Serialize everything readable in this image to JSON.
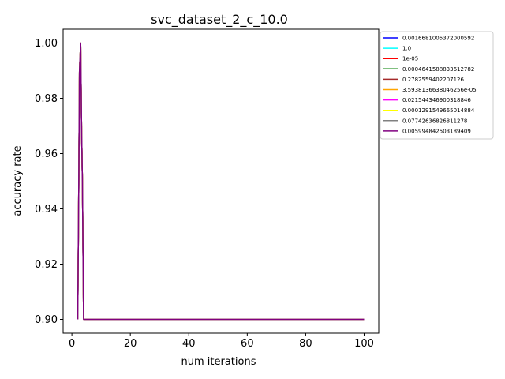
{
  "chart_data": {
    "type": "line",
    "title": "svc_dataset_2_c_10.0",
    "xlabel": "num iterations",
    "ylabel": "accuracy rate",
    "xlim": [
      -3,
      105
    ],
    "ylim": [
      0.895,
      1.005
    ],
    "xticks": [
      0,
      20,
      40,
      60,
      80,
      100
    ],
    "yticks": [
      0.9,
      0.92,
      0.94,
      0.96,
      0.98,
      1.0
    ],
    "ytick_labels": [
      "0.90",
      "0.92",
      "0.94",
      "0.96",
      "0.98",
      "1.00"
    ],
    "grid": false,
    "legend_position": "outside-upper-right",
    "x": [
      2,
      2.3,
      2.6,
      3,
      3.3,
      3.6,
      4,
      5,
      10,
      20,
      40,
      60,
      80,
      100
    ],
    "series": [
      {
        "name": "0.0016681005372000592",
        "color": "#0000ff",
        "values": [
          0.9,
          0.94,
          0.99,
          1.0,
          0.97,
          0.95,
          0.9,
          0.9,
          0.9,
          0.9,
          0.9,
          0.9,
          0.9,
          0.9
        ]
      },
      {
        "name": "1.0",
        "color": "#00ffff",
        "values": [
          0.9,
          0.94,
          0.99,
          1.0,
          0.97,
          0.95,
          0.9,
          0.9,
          0.9,
          0.9,
          0.9,
          0.9,
          0.9,
          0.9
        ]
      },
      {
        "name": "1e-05",
        "color": "#ff0000",
        "values": [
          0.9,
          0.94,
          0.99,
          1.0,
          0.97,
          0.95,
          0.9,
          0.9,
          0.9,
          0.9,
          0.9,
          0.9,
          0.9,
          0.9
        ]
      },
      {
        "name": "0.0004641588833612782",
        "color": "#008000",
        "values": [
          0.9,
          0.94,
          0.99,
          1.0,
          0.97,
          0.95,
          0.9,
          0.9,
          0.9,
          0.9,
          0.9,
          0.9,
          0.9,
          0.9
        ]
      },
      {
        "name": "0.2782559402207126",
        "color": "#a52a2a",
        "values": [
          0.9,
          0.94,
          0.99,
          1.0,
          0.97,
          0.95,
          0.9,
          0.9,
          0.9,
          0.9,
          0.9,
          0.9,
          0.9,
          0.9
        ]
      },
      {
        "name": "3.5938136638046256e-05",
        "color": "#ffa500",
        "values": [
          0.9,
          0.94,
          0.99,
          1.0,
          0.97,
          0.95,
          0.9,
          0.9,
          0.9,
          0.9,
          0.9,
          0.9,
          0.9,
          0.9
        ]
      },
      {
        "name": "0.021544346900318846",
        "color": "#ff00ff",
        "values": [
          0.9,
          0.94,
          0.99,
          1.0,
          0.97,
          0.95,
          0.9,
          0.9,
          0.9,
          0.9,
          0.9,
          0.9,
          0.9,
          0.9
        ]
      },
      {
        "name": "0.0001291549665014884",
        "color": "#ffff00",
        "values": [
          0.9,
          0.94,
          0.99,
          1.0,
          0.97,
          0.95,
          0.9,
          0.9,
          0.9,
          0.9,
          0.9,
          0.9,
          0.9,
          0.9
        ]
      },
      {
        "name": "0.07742636826811278",
        "color": "#808080",
        "values": [
          0.9,
          0.94,
          0.99,
          1.0,
          0.97,
          0.95,
          0.9,
          0.9,
          0.9,
          0.9,
          0.9,
          0.9,
          0.9,
          0.9
        ]
      },
      {
        "name": "0.005994842503189409",
        "color": "#800080",
        "values": [
          0.9,
          0.94,
          0.99,
          1.0,
          0.97,
          0.95,
          0.9,
          0.9,
          0.9,
          0.9,
          0.9,
          0.9,
          0.9,
          0.9
        ]
      }
    ]
  }
}
